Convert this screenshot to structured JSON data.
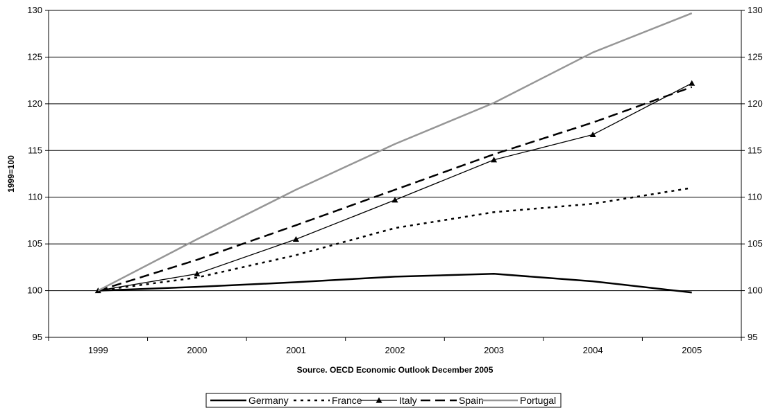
{
  "chart_data": {
    "type": "line",
    "title": "",
    "xlabel": "Source. OECD Economic Outlook December 2005",
    "ylabel": "1999=100",
    "categories": [
      "1999",
      "2000",
      "2001",
      "2002",
      "2003",
      "2004",
      "2005"
    ],
    "ylim": [
      95,
      130
    ],
    "yticks": [
      95,
      100,
      105,
      110,
      115,
      120,
      125,
      130
    ],
    "grid": true,
    "legend_position": "bottom",
    "series": [
      {
        "name": "Germany",
        "values": [
          100,
          100.4,
          100.9,
          101.5,
          101.8,
          101.0,
          99.8
        ],
        "color": "#000000",
        "style": "solid-thick"
      },
      {
        "name": "France",
        "values": [
          100,
          101.4,
          103.8,
          106.7,
          108.4,
          109.3,
          111.0
        ],
        "color": "#000000",
        "style": "dotted"
      },
      {
        "name": "Italy",
        "values": [
          100,
          101.8,
          105.5,
          109.7,
          114.0,
          116.7,
          122.2
        ],
        "color": "#000000",
        "style": "solid-thin-triangle"
      },
      {
        "name": "Spain",
        "values": [
          100,
          103.3,
          107.0,
          110.8,
          114.6,
          118.0,
          121.8
        ],
        "color": "#000000",
        "style": "dashed"
      },
      {
        "name": "Portugal",
        "values": [
          100,
          105.5,
          110.8,
          115.7,
          120.1,
          125.5,
          129.7
        ],
        "color": "#969696",
        "style": "solid-gray"
      }
    ]
  }
}
